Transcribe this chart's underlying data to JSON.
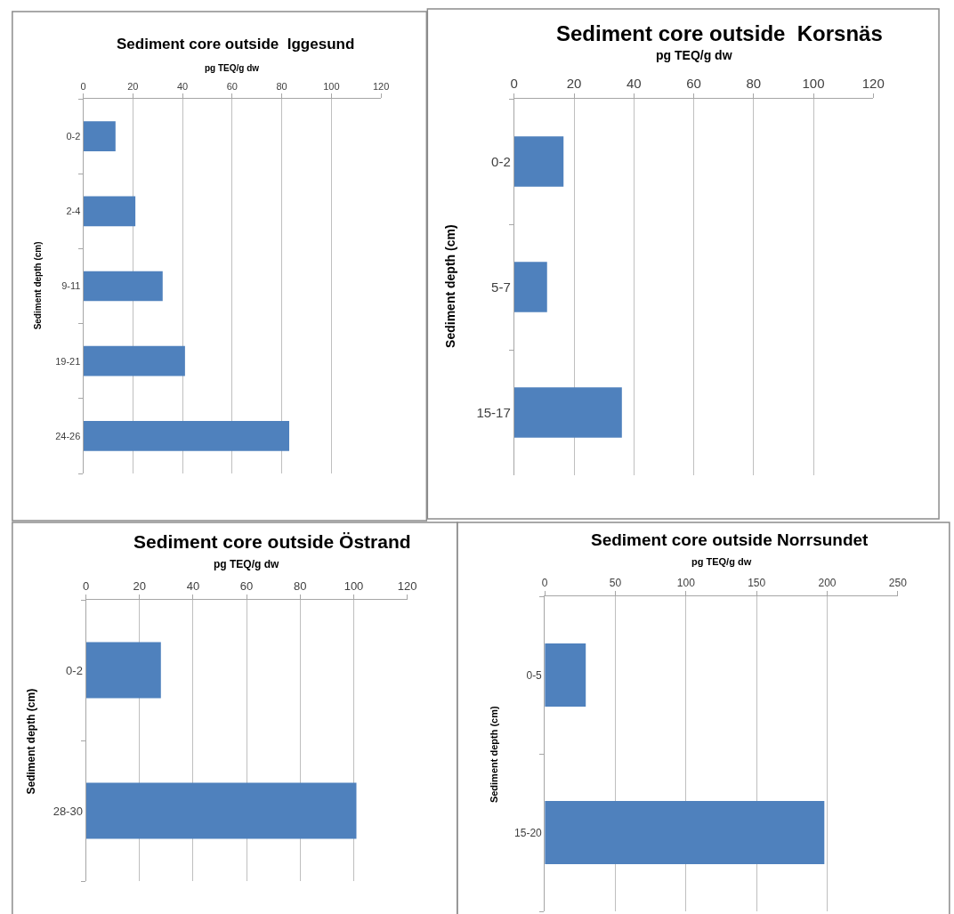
{
  "chart_data": [
    {
      "type": "bar",
      "orientation": "horizontal",
      "title": "Sediment core outside  Iggesund",
      "xlabel": "pg TEQ/g dw",
      "ylabel": "Sediment depth (cm)",
      "categories": [
        "0-2",
        "2-4",
        "9-11",
        "19-21",
        "24-26"
      ],
      "values": [
        13,
        21,
        32,
        41,
        83
      ],
      "color": "#4f81bd",
      "xlim": [
        0,
        120
      ],
      "xticks": [
        0,
        20,
        40,
        60,
        80,
        100,
        120
      ],
      "grid": "x"
    },
    {
      "type": "bar",
      "orientation": "horizontal",
      "title": "Sediment core outside  Korsnäs",
      "xlabel": "pg TEQ/g dw",
      "ylabel": "Sediment depth (cm)",
      "categories": [
        "0-2",
        "5-7",
        "15-17"
      ],
      "values": [
        16.5,
        11,
        36
      ],
      "color": "#4f81bd",
      "xlim": [
        0,
        120
      ],
      "xticks": [
        0,
        20,
        40,
        60,
        80,
        100,
        120
      ],
      "grid": "x"
    },
    {
      "type": "bar",
      "orientation": "horizontal",
      "title": "Sediment core outside Östrand",
      "xlabel": "pg TEQ/g dw",
      "ylabel": "Sediment depth (cm)",
      "categories": [
        "0-2",
        "28-30"
      ],
      "values": [
        28,
        101
      ],
      "color": "#4f81bd",
      "xlim": [
        0,
        120
      ],
      "xticks": [
        0,
        20,
        40,
        60,
        80,
        100,
        120
      ],
      "grid": "x"
    },
    {
      "type": "bar",
      "orientation": "horizontal",
      "title": "Sediment core outside Norrsundet",
      "xlabel": "pg TEQ/g dw",
      "ylabel": "Sediment depth (cm)",
      "categories": [
        "0-5",
        "15-20"
      ],
      "values": [
        29,
        198
      ],
      "color": "#4f81bd",
      "xlim": [
        0,
        250
      ],
      "xticks": [
        0,
        50,
        100,
        150,
        200,
        250
      ],
      "grid": "x"
    }
  ]
}
